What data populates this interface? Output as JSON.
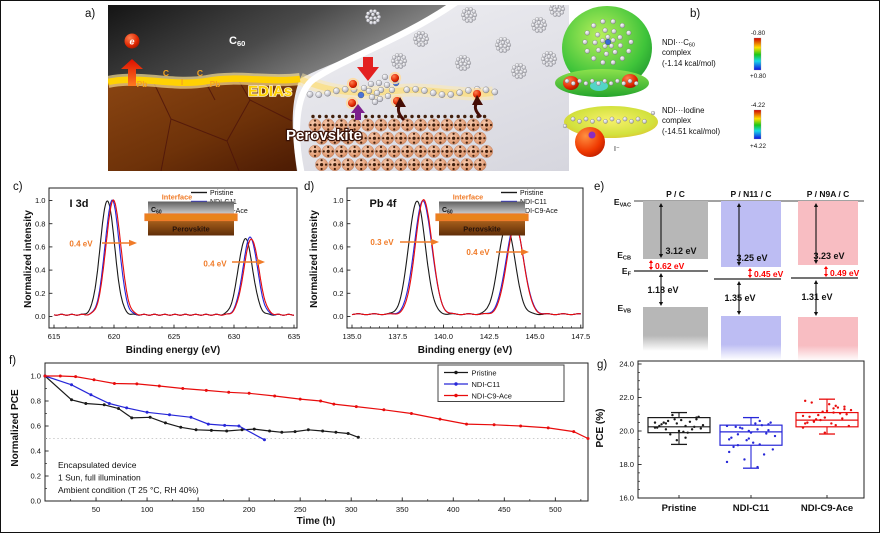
{
  "figure": {
    "panel_labels": {
      "a": "a)",
      "b": "b)",
      "c": "c)",
      "d": "d)",
      "e": "e)",
      "f": "f)",
      "g": "g)"
    },
    "border_color": "#111111",
    "background": "#ffffff"
  },
  "panel_a": {
    "label_c60_main": "C",
    "label_c60_sub": "60",
    "label_e": "e",
    "label_edias": "EDIAs",
    "label_perovskite": "Perovskite",
    "atoms": [
      "Pb",
      "C",
      "I",
      "C",
      "Pb"
    ]
  },
  "panel_b": {
    "complex1": {
      "name_main": "NDI···C",
      "name_sub": "60",
      "line2": "complex",
      "line3": "(-1.14 kcal/mol)",
      "scale_top": "-0.80",
      "scale_bottom": "+0.80"
    },
    "complex2": {
      "name": "NDI···Iodine",
      "line2": "complex",
      "line3": "(-14.51 kcal/mol)",
      "iodide_label": "I⁻",
      "scale_top": "-4.22",
      "scale_bottom": "+4.22"
    }
  },
  "panel_c": {
    "inset": {
      "title": "Interface",
      "layer_top_main": "C",
      "layer_top_sub": "60",
      "layer_bottom": "Perovskite"
    }
  },
  "panel_d": {
    "inset": {
      "title": "Interface",
      "layer_top_main": "C",
      "layer_top_sub": "60",
      "layer_bottom": "Perovskite"
    }
  },
  "panel_e": {
    "axis_labels": {
      "evac_main": "E",
      "evac_sub": "VAC",
      "ecb_main": "E",
      "ecb_sub": "CB",
      "ef_main": "E",
      "ef_sub": "F",
      "evb_main": "E",
      "evb_sub": "VB"
    },
    "columns": [
      {
        "header": "P / C",
        "color": "#b7b7b7",
        "gap_vac_cb": "3.12 eV",
        "gap_cb_ef": "0.62 eV",
        "gap_ef_vb": "1.18 eV"
      },
      {
        "header": "P / N11 / C",
        "color": "#bdbdf3",
        "gap_vac_cb": "3.25 eV",
        "gap_cb_ef": "0.45 eV",
        "gap_ef_vb": "1.35 eV"
      },
      {
        "header": "P / N9A / C",
        "color": "#f8bdc2",
        "gap_vac_cb": "3.23 eV",
        "gap_cb_ef": "0.49 eV",
        "gap_ef_vb": "1.31 eV"
      }
    ],
    "value_color": "#fe0000"
  },
  "chart_data": [
    {
      "id": "i3d",
      "type": "line",
      "title": "I 3d",
      "xlabel": "Binding energy (eV)",
      "ylabel": "Normalized intensity",
      "xlim": [
        615,
        635
      ],
      "ylim": [
        -0.1,
        1.1
      ],
      "xticks": [
        "615",
        "620",
        "625",
        "630",
        "635"
      ],
      "yticks": [
        "0.0",
        "0.2",
        "0.4",
        "0.6",
        "0.8",
        "1.0"
      ],
      "legend": [
        "Pristine",
        "NDI-C11",
        "NDI-C9-Ace"
      ],
      "annotations": [
        "0.4 eV",
        "0.4 eV"
      ],
      "baseline": 0.015,
      "series": [
        {
          "name": "Pristine",
          "color": "#1a1a1a",
          "peaks": [
            {
              "center": 619.45,
              "height": 0.985,
              "sigma": 0.6
            },
            {
              "center": 630.95,
              "height": 0.655,
              "sigma": 0.6
            }
          ]
        },
        {
          "name": "NDI-C11",
          "color": "#2727d8",
          "peaks": [
            {
              "center": 619.85,
              "height": 0.985,
              "sigma": 0.6
            },
            {
              "center": 631.35,
              "height": 0.67,
              "sigma": 0.6
            }
          ]
        },
        {
          "name": "NDI-C9-Ace",
          "color": "#e80c0c",
          "peaks": [
            {
              "center": 619.95,
              "height": 0.985,
              "sigma": 0.62
            },
            {
              "center": 631.45,
              "height": 0.655,
              "sigma": 0.62
            }
          ]
        }
      ]
    },
    {
      "id": "pb4f",
      "type": "line",
      "title": "Pb 4f",
      "xlabel": "Binding energy (eV)",
      "ylabel": "Normalized intensity",
      "xlim": [
        135,
        147.5
      ],
      "ylim": [
        -0.1,
        1.1
      ],
      "xticks": [
        "135.0",
        "137.5",
        "140.0",
        "142.5",
        "145.0",
        "147.5"
      ],
      "yticks": [
        "0.0",
        "0.2",
        "0.4",
        "0.6",
        "0.8",
        "1.0"
      ],
      "legend": [
        "Pristine",
        "NDI-C11",
        "NDI-C9-Ace"
      ],
      "annotations": [
        "0.3 eV",
        "0.4 eV"
      ],
      "baseline": 0.02,
      "series": [
        {
          "name": "Pristine",
          "color": "#1a1a1a",
          "peaks": [
            {
              "center": 138.55,
              "height": 0.975,
              "sigma": 0.46
            },
            {
              "center": 143.45,
              "height": 0.76,
              "sigma": 0.46
            }
          ]
        },
        {
          "name": "NDI-C11",
          "color": "#2727d8",
          "peaks": [
            {
              "center": 138.88,
              "height": 0.975,
              "sigma": 0.48
            },
            {
              "center": 143.9,
              "height": 0.775,
              "sigma": 0.48
            }
          ]
        },
        {
          "name": "NDI-C9-Ace",
          "color": "#e80c0c",
          "peaks": [
            {
              "center": 138.92,
              "height": 0.985,
              "sigma": 0.46
            },
            {
              "center": 143.92,
              "height": 0.765,
              "sigma": 0.46
            }
          ]
        }
      ]
    },
    {
      "id": "stability",
      "type": "line",
      "xlabel": "Time (h)",
      "ylabel": "Normalized PCE",
      "xlim": [
        0,
        532
      ],
      "ylim": [
        0,
        1.05
      ],
      "xticks": [
        "50",
        "100",
        "150",
        "200",
        "250",
        "300",
        "350",
        "400",
        "450",
        "500"
      ],
      "yticks": [
        "0.0",
        "0.2",
        "0.4",
        "0.6",
        "0.8",
        "1.0"
      ],
      "legend": [
        "Pristine",
        "NDI-C11",
        "NDI-C9-Ace"
      ],
      "reference_line": 0.5,
      "note_lines": [
        "Encapsulated device",
        "1 Sun, full illumination",
        "Ambient condition (T 25 °C, RH 40%)"
      ],
      "series": [
        {
          "name": "Pristine",
          "color": "#1a1a1a",
          "points": [
            [
              0,
              1.0
            ],
            [
              26,
              0.81
            ],
            [
              40,
              0.78
            ],
            [
              58,
              0.77
            ],
            [
              72,
              0.74
            ],
            [
              85,
              0.665
            ],
            [
              103,
              0.67
            ],
            [
              118,
              0.625
            ],
            [
              133,
              0.59
            ],
            [
              148,
              0.57
            ],
            [
              163,
              0.565
            ],
            [
              178,
              0.56
            ],
            [
              193,
              0.57
            ],
            [
              205,
              0.575
            ],
            [
              220,
              0.56
            ],
            [
              232,
              0.55
            ],
            [
              245,
              0.555
            ],
            [
              258,
              0.57
            ],
            [
              272,
              0.56
            ],
            [
              285,
              0.55
            ],
            [
              297,
              0.54
            ],
            [
              307,
              0.51
            ]
          ]
        },
        {
          "name": "NDI-C11",
          "color": "#2727d8",
          "points": [
            [
              0,
              1.0
            ],
            [
              26,
              0.93
            ],
            [
              45,
              0.85
            ],
            [
              63,
              0.78
            ],
            [
              80,
              0.745
            ],
            [
              100,
              0.71
            ],
            [
              122,
              0.69
            ],
            [
              143,
              0.67
            ],
            [
              160,
              0.615
            ],
            [
              176,
              0.605
            ],
            [
              190,
              0.6
            ],
            [
              215,
              0.49
            ]
          ]
        },
        {
          "name": "NDI-C9-Ace",
          "color": "#e80c0c",
          "points": [
            [
              0,
              1.0
            ],
            [
              15,
              1.0
            ],
            [
              30,
              0.995
            ],
            [
              48,
              0.97
            ],
            [
              68,
              0.94
            ],
            [
              90,
              0.937
            ],
            [
              112,
              0.92
            ],
            [
              135,
              0.9
            ],
            [
              158,
              0.885
            ],
            [
              180,
              0.87
            ],
            [
              200,
              0.862
            ],
            [
              225,
              0.84
            ],
            [
              250,
              0.815
            ],
            [
              270,
              0.8
            ],
            [
              283,
              0.775
            ],
            [
              305,
              0.755
            ],
            [
              332,
              0.73
            ],
            [
              359,
              0.7
            ],
            [
              387,
              0.655
            ],
            [
              413,
              0.615
            ],
            [
              440,
              0.61
            ],
            [
              466,
              0.6
            ],
            [
              493,
              0.585
            ],
            [
              518,
              0.555
            ],
            [
              532,
              0.5
            ]
          ]
        }
      ]
    },
    {
      "id": "pce_box",
      "type": "box",
      "ylabel": "PCE (%)",
      "ylim": [
        16,
        24
      ],
      "yticks": [
        "16.0",
        "18.0",
        "20.0",
        "22.0",
        "24.0"
      ],
      "categories": [
        "Pristine",
        "NDI-C11",
        "NDI-C9-Ace"
      ],
      "series": [
        {
          "name": "Pristine",
          "color": "#1a1a1a",
          "whisker_low": 19.2,
          "q1": 19.9,
          "median": 20.25,
          "q3": 20.8,
          "whisker_high": 21.1,
          "points": [
            20.5,
            20.3,
            20.1,
            20.7,
            20.45,
            20.2,
            19.9,
            20.6,
            20.85,
            20.0,
            20.3,
            20.55,
            19.8,
            20.15,
            20.65,
            20.4,
            20.1,
            20.95,
            20.35,
            19.95,
            20.5,
            20.25,
            20.7,
            20.2,
            19.6,
            20.45,
            20.8,
            19.45
          ]
        },
        {
          "name": "NDI-C11",
          "color": "#2727d8",
          "whisker_low": 17.78,
          "q1": 19.15,
          "median": 19.95,
          "q3": 20.35,
          "whisker_high": 20.8,
          "points": [
            20.3,
            20.1,
            19.8,
            20.4,
            20.0,
            19.5,
            19.2,
            20.2,
            20.5,
            19.9,
            19.6,
            20.35,
            20.15,
            18.9,
            19.3,
            19.05,
            18.6,
            18.3,
            19.7,
            20.45,
            20.25,
            19.85,
            19.45,
            18.15,
            17.85,
            19.15,
            20.05,
            19.55,
            18.75,
            20.6
          ]
        },
        {
          "name": "NDI-C9-Ace",
          "color": "#e80c0c",
          "whisker_low": 19.82,
          "q1": 20.25,
          "median": 20.65,
          "q3": 21.1,
          "whisker_high": 21.9,
          "points": [
            20.9,
            21.1,
            20.6,
            21.3,
            20.8,
            20.45,
            21.5,
            20.7,
            21.0,
            21.2,
            20.5,
            21.4,
            20.95,
            20.3,
            21.6,
            20.85,
            21.05,
            20.65,
            21.25,
            20.45,
            21.7,
            20.75,
            21.15,
            20.2,
            21.35,
            20.55,
            21.45,
            19.9,
            21.8,
            20.35
          ]
        }
      ]
    }
  ]
}
